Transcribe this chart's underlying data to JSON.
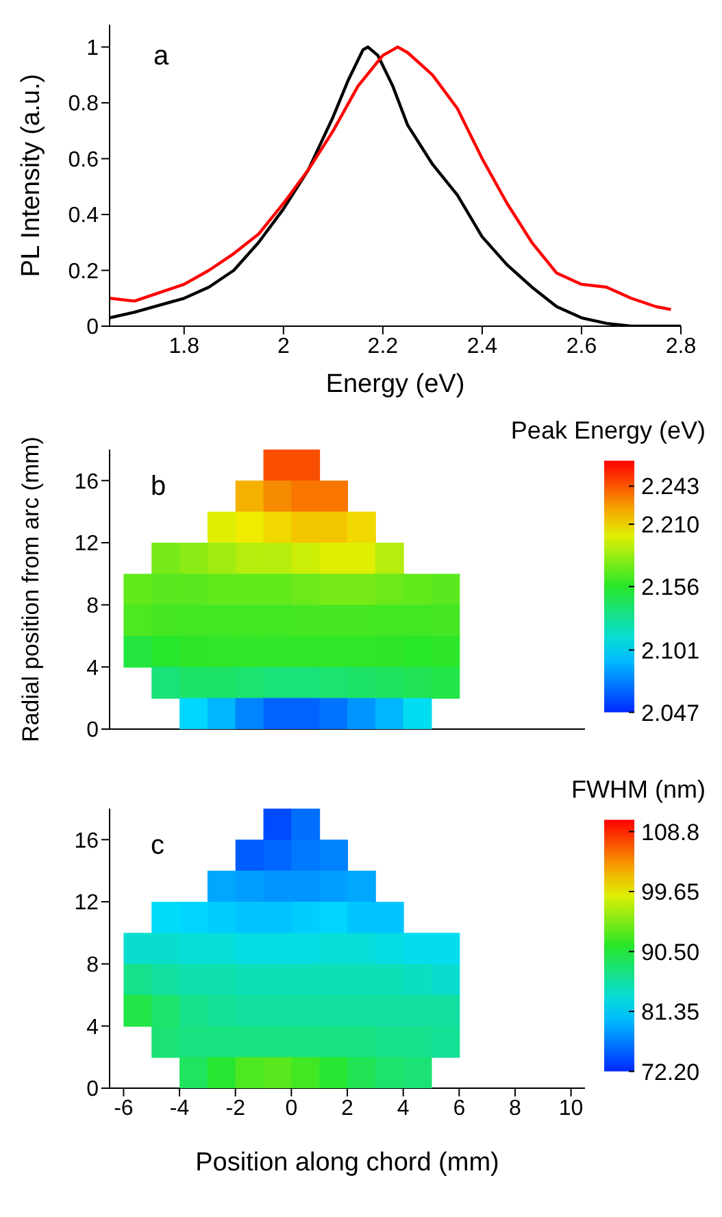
{
  "chart_data": [
    {
      "type": "line",
      "xlabel": "Energy (eV)",
      "ylabel": "PL Intensity (a.u.)",
      "annotations": [
        "a"
      ],
      "xlim": [
        1.65,
        2.8
      ],
      "xticks": [
        1.8,
        2.0,
        2.2,
        2.4,
        2.6,
        2.8
      ],
      "ylim": [
        0,
        1.08
      ],
      "yticks": [
        0.0,
        0.2,
        0.4,
        0.6,
        0.8,
        1.0
      ],
      "grid": false,
      "legend": false,
      "marker": "none",
      "line_style": "solid",
      "series": [
        {
          "color": "#000000",
          "x": [
            1.65,
            1.7,
            1.8,
            1.85,
            1.9,
            1.95,
            2.0,
            2.05,
            2.1,
            2.13,
            2.16,
            2.17,
            2.19,
            2.22,
            2.25,
            2.3,
            2.35,
            2.4,
            2.45,
            2.5,
            2.55,
            2.6,
            2.65,
            2.7,
            2.8
          ],
          "values": [
            0.03,
            0.05,
            0.1,
            0.14,
            0.2,
            0.3,
            0.42,
            0.56,
            0.75,
            0.88,
            0.99,
            1.0,
            0.97,
            0.86,
            0.72,
            0.58,
            0.47,
            0.32,
            0.22,
            0.14,
            0.07,
            0.03,
            0.01,
            0.0,
            0.0
          ]
        },
        {
          "color": "#ff0000",
          "x": [
            1.65,
            1.7,
            1.75,
            1.8,
            1.85,
            1.9,
            1.95,
            2.0,
            2.05,
            2.1,
            2.15,
            2.2,
            2.23,
            2.25,
            2.3,
            2.35,
            2.4,
            2.45,
            2.5,
            2.55,
            2.6,
            2.65,
            2.7,
            2.75,
            2.78
          ],
          "values": [
            0.1,
            0.09,
            0.12,
            0.15,
            0.2,
            0.26,
            0.33,
            0.44,
            0.56,
            0.7,
            0.86,
            0.97,
            1.0,
            0.98,
            0.9,
            0.78,
            0.6,
            0.44,
            0.3,
            0.19,
            0.15,
            0.14,
            0.1,
            0.07,
            0.06
          ]
        }
      ]
    },
    {
      "type": "heatmap",
      "ylabel": "Radial position from arc (mm)",
      "clabel": "Peak Energy (eV)",
      "annotations": [
        "b"
      ],
      "tick_labels": "y",
      "x": [
        -5.5,
        -4.5,
        -3.5,
        -2.5,
        -1.5,
        -0.5,
        0.5,
        1.5,
        2.5,
        3.5,
        4.5,
        5.5
      ],
      "xlim": [
        -6.5,
        10.5
      ],
      "xticks": [
        -6,
        -4,
        -2,
        0,
        2,
        4,
        6,
        8,
        10
      ],
      "ylim": [
        0,
        18
      ],
      "yticks": [
        0,
        4,
        8,
        12,
        16
      ],
      "clim": [
        2.047,
        2.265
      ],
      "cticks": [
        2.047,
        2.101,
        2.156,
        {
          "value": 2.21,
          "label": "2.210"
        },
        2.243
      ],
      "cells": [
        [
          null,
          null,
          null,
          null,
          null,
          2.245,
          2.245,
          null,
          null,
          null,
          null,
          null
        ],
        [
          null,
          null,
          null,
          null,
          2.22,
          2.23,
          2.235,
          2.235,
          null,
          null,
          null,
          null
        ],
        [
          null,
          null,
          null,
          2.2,
          2.205,
          2.21,
          2.215,
          2.215,
          2.21,
          null,
          null,
          null
        ],
        [
          null,
          2.175,
          2.18,
          2.185,
          2.19,
          2.19,
          2.195,
          2.2,
          2.2,
          2.19,
          null,
          null
        ],
        [
          2.17,
          2.168,
          2.168,
          2.17,
          2.17,
          2.17,
          2.172,
          2.175,
          2.175,
          2.172,
          2.17,
          2.168
        ],
        [
          2.165,
          2.163,
          2.162,
          2.162,
          2.162,
          2.162,
          2.163,
          2.163,
          2.163,
          2.162,
          2.162,
          2.163
        ],
        [
          2.15,
          2.155,
          2.157,
          2.158,
          2.158,
          2.158,
          2.158,
          2.158,
          2.158,
          2.157,
          2.156,
          2.157
        ],
        [
          null,
          2.135,
          2.14,
          2.14,
          2.138,
          2.135,
          2.135,
          2.138,
          2.14,
          2.142,
          2.145,
          2.148
        ],
        [
          null,
          null,
          2.1,
          2.09,
          2.075,
          2.065,
          2.065,
          2.07,
          2.08,
          2.09,
          2.105,
          null
        ]
      ]
    },
    {
      "type": "heatmap",
      "xlabel": "Position along chord (mm)",
      "clabel": "FWHM (nm)",
      "annotations": [
        "c"
      ],
      "x": [
        -5.5,
        -4.5,
        -3.5,
        -2.5,
        -1.5,
        -0.5,
        0.5,
        1.5,
        2.5,
        3.5,
        4.5,
        5.5
      ],
      "xlim": [
        -6.5,
        10.5
      ],
      "xticks": [
        -6,
        -4,
        -2,
        0,
        2,
        4,
        6,
        8,
        10
      ],
      "ylim": [
        0,
        18
      ],
      "yticks": [
        0,
        4,
        8,
        12,
        16
      ],
      "clim": [
        72.2,
        110.6
      ],
      "cticks": [
        {
          "value": 72.2,
          "label": "72.20"
        },
        81.35,
        {
          "value": 90.5,
          "label": "90.50"
        },
        99.65,
        108.8
      ],
      "cells": [
        [
          null,
          null,
          null,
          null,
          null,
          74.0,
          76.0,
          null,
          null,
          null,
          null,
          null
        ],
        [
          null,
          null,
          null,
          null,
          75.0,
          75.5,
          76.5,
          77.0,
          null,
          null,
          null,
          null
        ],
        [
          null,
          null,
          null,
          79.0,
          78.5,
          78.0,
          78.0,
          78.5,
          79.0,
          null,
          null,
          null
        ],
        [
          null,
          82.0,
          81.5,
          81.0,
          80.5,
          80.5,
          81.0,
          81.5,
          80.5,
          80.5,
          null,
          null
        ],
        [
          84.0,
          84.0,
          83.5,
          83.5,
          83.0,
          83.0,
          83.0,
          83.5,
          83.5,
          83.0,
          82.5,
          82.5
        ],
        [
          87.0,
          86.0,
          85.5,
          85.5,
          85.0,
          85.0,
          85.0,
          85.0,
          85.0,
          85.0,
          84.5,
          84.0
        ],
        [
          90.0,
          88.5,
          87.0,
          86.5,
          86.0,
          86.0,
          86.0,
          86.0,
          86.0,
          86.0,
          86.0,
          86.0
        ],
        [
          null,
          88.0,
          87.5,
          87.5,
          87.5,
          87.5,
          87.5,
          87.5,
          87.5,
          87.0,
          87.0,
          86.5
        ],
        [
          null,
          null,
          89.0,
          91.0,
          93.0,
          93.5,
          92.5,
          91.0,
          89.5,
          88.5,
          88.0,
          null
        ]
      ]
    }
  ]
}
